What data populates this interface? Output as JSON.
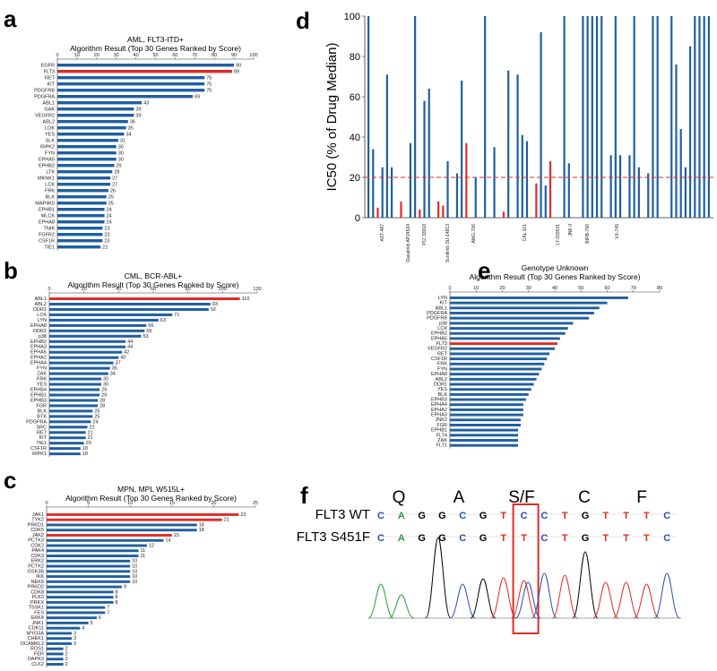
{
  "figure": {
    "colors": {
      "bar": "#1f5fa0",
      "highlight": "#e32b27",
      "threshold": "#e32b27"
    }
  },
  "chart_data": [
    {
      "panel": "a",
      "type": "bar",
      "orientation": "horizontal",
      "title": "AML, FLT3-ITD+",
      "subtitle": "Algorithm Result (Top 30 Genes Ranked by Score)",
      "xlim": [
        0,
        100
      ],
      "xticks": [
        0,
        10,
        20,
        30,
        40,
        50,
        60,
        70,
        80,
        90,
        100
      ],
      "categories": [
        "EGFR",
        "FLT3",
        "RET",
        "KIT",
        "PDGFRB",
        "PDGFRA",
        "ABL1",
        "GAK",
        "VEGFR2",
        "ABL2",
        "LOK",
        "YES",
        "SLK",
        "RIPK2",
        "FYN",
        "EPHA5",
        "EPHB2",
        "LTK",
        "MKNK1",
        "LCK",
        "FRK",
        "BLK",
        "MAP4K5",
        "EPHB1",
        "MLCK",
        "EPHA8",
        "TNIK",
        "FGFR2",
        "CSF1R",
        "TIE1"
      ],
      "values": [
        90,
        89,
        75,
        75,
        75,
        69,
        43,
        39,
        39,
        36,
        35,
        34,
        31,
        30,
        30,
        30,
        29,
        28,
        27,
        27,
        26,
        25,
        25,
        24,
        24,
        24,
        23,
        23,
        23,
        22
      ],
      "highlight": [
        "FLT3"
      ]
    },
    {
      "panel": "b",
      "type": "bar",
      "orientation": "horizontal",
      "title": "CML, BCR-ABL+",
      "subtitle": "Algorithm Result (Top 30 Genes Ranked by Score)",
      "xlim": [
        0,
        120
      ],
      "xticks": [
        0,
        20,
        40,
        60,
        80,
        100,
        120
      ],
      "categories": [
        "ABL1",
        "ABL2",
        "DDR1",
        "LCK",
        "LYN",
        "EPHA8",
        "DDR2",
        "p38",
        "EPHB2",
        "EPHA3",
        "EPHA5",
        "EPHA2",
        "EPHA4",
        "FYN",
        "ZAK",
        "FRK",
        "YES",
        "EPHB4",
        "EPHB1",
        "EPHB3",
        "FGR",
        "BLK",
        "BTK",
        "PDGFRA",
        "SRC",
        "RET",
        "KIT",
        "TIE1",
        "CSF1R",
        "RIPK1"
      ],
      "values": [
        110,
        93,
        92,
        71,
        63,
        56,
        55,
        53,
        44,
        44,
        42,
        40,
        37,
        35,
        34,
        30,
        30,
        29,
        29,
        28,
        28,
        25,
        25,
        24,
        22,
        21,
        21,
        20,
        18,
        18
      ],
      "highlight": [
        "ABL1"
      ]
    },
    {
      "panel": "c",
      "type": "bar",
      "orientation": "horizontal",
      "title": "MPN, MPL W515L+",
      "subtitle": "Algorithm Result (Top 30 Genes Ranked by Score)",
      "xlim": [
        0,
        25
      ],
      "xticks": [
        0,
        5,
        10,
        15,
        20,
        25
      ],
      "categories": [
        "JAK1",
        "TYK2",
        "PRKD1",
        "CDK5",
        "JAK2",
        "PCTK3",
        "CDK2",
        "PAK4",
        "CDK3",
        "ERK2",
        "PCTK2",
        "GSK3B",
        "IKK",
        "NEK9",
        "PRKD2",
        "CDK8",
        "PLK3",
        "PRKX",
        "TSSK1",
        "FES",
        "ERK4",
        "JNK1",
        "CDK11",
        "MYO3A",
        "CHEK1",
        "DCAMKL2",
        "ROS1",
        "FER",
        "DAPK3",
        "CLK2"
      ],
      "values": [
        23,
        21,
        18,
        18,
        15,
        14,
        12,
        11,
        11,
        10,
        10,
        10,
        10,
        10,
        9,
        8,
        8,
        8,
        7,
        7,
        6,
        5,
        4,
        3,
        3,
        3,
        2,
        2,
        2,
        2
      ],
      "highlight": [
        "JAK1",
        "TYK2",
        "JAK2"
      ]
    },
    {
      "panel": "d",
      "type": "bar",
      "orientation": "vertical",
      "ylabel": "IC50 (% of Drug Median)",
      "ylim": [
        0,
        100
      ],
      "yticks": [
        0,
        20,
        40,
        60,
        80,
        100
      ],
      "threshold": 20,
      "drug_labels": [
        "AST-487",
        "Dasatinib AP24534",
        "PCI 33918",
        "Sunitinib SU-14813",
        "AMG-706",
        "CAL 101",
        "LY-333531",
        "JNK II",
        "BIRB-796",
        "VX-745"
      ],
      "values": [
        100,
        34,
        5,
        25,
        71,
        25,
        0,
        8,
        0,
        37,
        100,
        4,
        58,
        64,
        0,
        8,
        6,
        28,
        0,
        22,
        68,
        37,
        0,
        20,
        0,
        100,
        0,
        35,
        0,
        3,
        73,
        0,
        71,
        41,
        38,
        0,
        17,
        92,
        16,
        28,
        0,
        0,
        100,
        27,
        0,
        0,
        100,
        100,
        100,
        100,
        100,
        0,
        31,
        100,
        31,
        0,
        31,
        100,
        25,
        0,
        22,
        100,
        100,
        0,
        0,
        100,
        76,
        44,
        25,
        85,
        100,
        100,
        100,
        100
      ],
      "highlight_indices": [
        2,
        7,
        11,
        15,
        16,
        21,
        29,
        36,
        39
      ]
    },
    {
      "panel": "e",
      "type": "bar",
      "orientation": "horizontal",
      "title": "Genotype Unknown",
      "subtitle": "Algorithm Result (Top 30 Genes Ranked by Score)",
      "xlim": [
        0,
        80
      ],
      "xticks": [
        0,
        10,
        20,
        30,
        40,
        50,
        60,
        70,
        80
      ],
      "categories": [
        "LYN",
        "KIT",
        "ABL1",
        "PDGFRA",
        "PDGFRB",
        "p38",
        "LCK",
        "EPHB2",
        "EPHA5",
        "FLT3",
        "VEGFR2",
        "RET",
        "CSF1R",
        "FRK",
        "FYN",
        "EPHA8",
        "ABL2",
        "DDR1",
        "YES",
        "BLK",
        "EPHB3",
        "EPHA4",
        "EPHA2",
        "EPHA3",
        "JNK2",
        "FGR",
        "EPHB1",
        "FLT4",
        "ZAK",
        "FLT1"
      ],
      "values": [
        68,
        60,
        57,
        55,
        53,
        47,
        45,
        44,
        42,
        41,
        40,
        38,
        37,
        36,
        35,
        34,
        33,
        32,
        31,
        30,
        29,
        28,
        28,
        28,
        27,
        27,
        26,
        26,
        26,
        26
      ],
      "highlight": [
        "FLT3"
      ]
    }
  ],
  "panel_f": {
    "codons": [
      "Q",
      "A",
      "S/F",
      "C",
      "F"
    ],
    "rows": [
      {
        "label": "FLT3 WT",
        "bases": [
          "C",
          "A",
          "G",
          "G",
          "C",
          "G",
          "T",
          "C",
          "C",
          "T",
          "G",
          "T",
          "T",
          "T",
          "C"
        ]
      },
      {
        "label": "FLT3 S451F",
        "bases": [
          "C",
          "A",
          "G",
          "G",
          "C",
          "G",
          "T",
          "T",
          "C",
          "T",
          "G",
          "T",
          "T",
          "T",
          "C"
        ]
      }
    ]
  },
  "panels": {
    "a": "a",
    "b": "b",
    "c": "c",
    "d": "d",
    "e": "e",
    "f": "f"
  }
}
